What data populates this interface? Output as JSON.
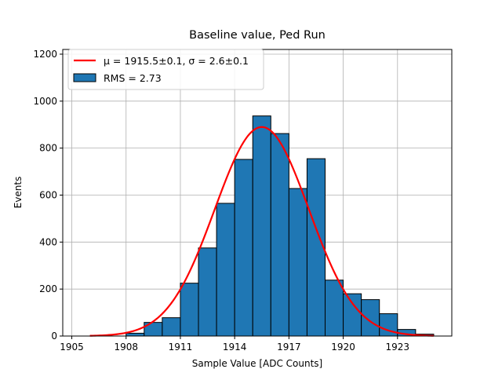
{
  "chart_data": {
    "type": "bar",
    "title": "Baseline value, Ped Run",
    "xlabel": "Sample Value [ADC Counts]",
    "ylabel": "Events",
    "xlim": [
      1904.5,
      1926.0
    ],
    "ylim": [
      0,
      1220
    ],
    "grid": true,
    "xticks": [
      1905,
      1908,
      1911,
      1914,
      1917,
      1920,
      1923
    ],
    "yticks": [
      0,
      200,
      400,
      600,
      800,
      1000,
      1200
    ],
    "histogram": {
      "name": "RMS = 2.73",
      "color": "#1f77b4",
      "edgecolor": "#000000",
      "bin_width": 1,
      "bin_starts": [
        1908,
        1909,
        1910,
        1911,
        1912,
        1913,
        1914,
        1915,
        1916,
        1917,
        1918,
        1919,
        1920,
        1921,
        1922,
        1923,
        1924
      ],
      "values": [
        12,
        58,
        78,
        225,
        375,
        565,
        752,
        937,
        862,
        628,
        755,
        238,
        180,
        155,
        95,
        28,
        8
      ]
    },
    "fit": {
      "name": "μ = 1915.5±0.1, σ = 2.6±0.1",
      "color": "#ff0000",
      "mu": 1915.5,
      "sigma": 2.6,
      "amplitude": 890,
      "x_range": [
        1906,
        1925
      ]
    },
    "legend": {
      "placement": "upper-left",
      "fit_label": "μ = 1915.5±0.1, σ = 2.6±0.1",
      "hist_label": "RMS = 2.73"
    }
  }
}
